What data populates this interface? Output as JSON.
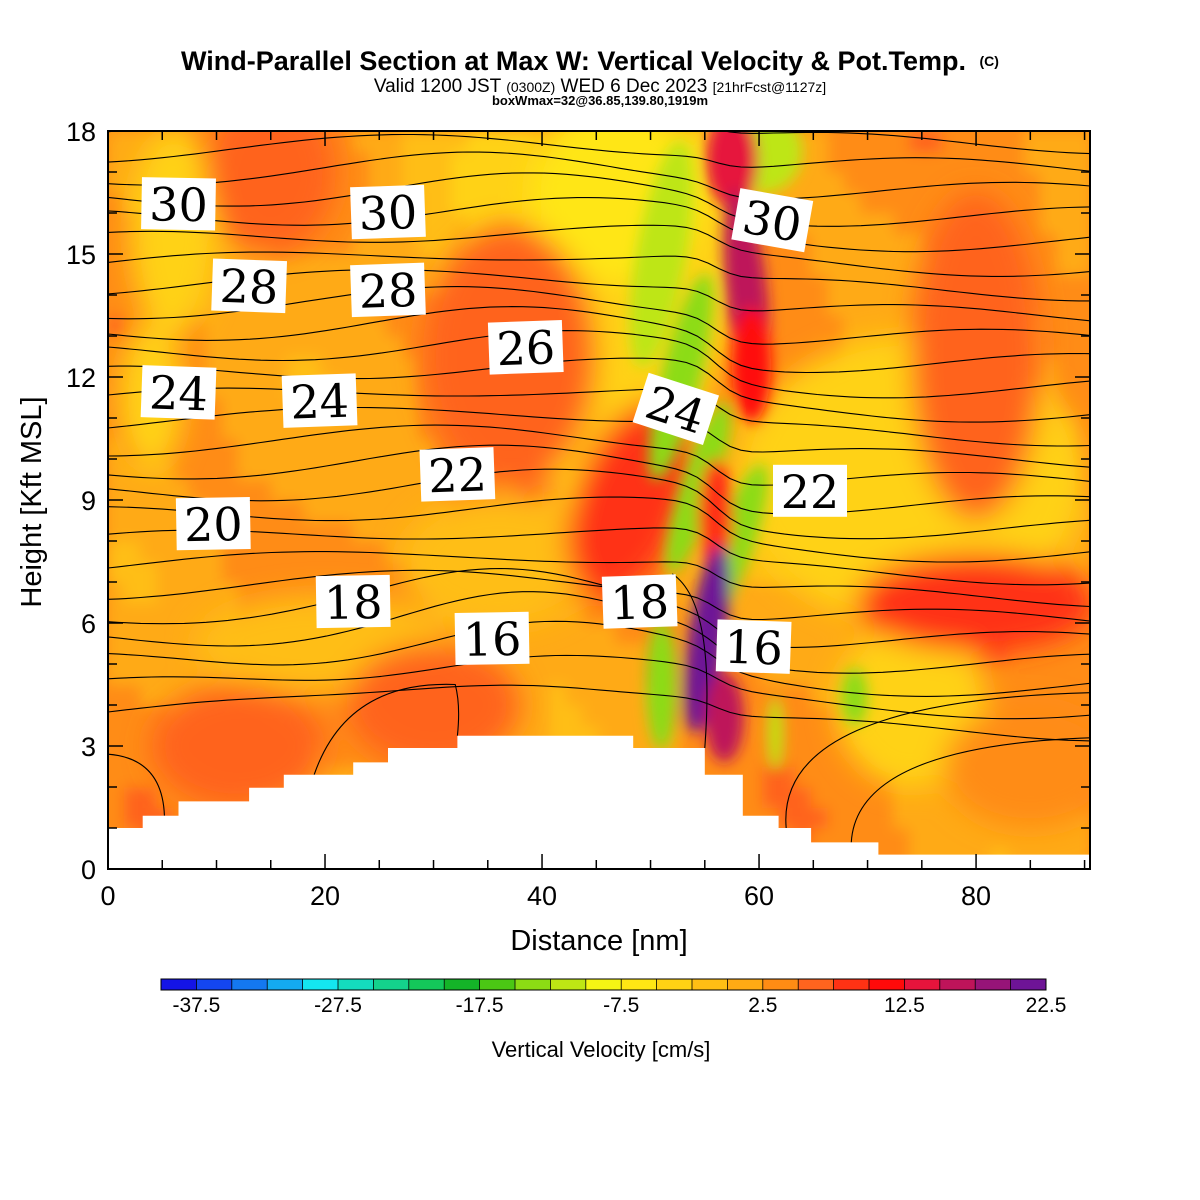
{
  "header": {
    "title": "Wind-Parallel Section at Max W: Vertical Velocity & Pot.Temp.",
    "copyright_mark": "(C)",
    "valid_a": "Valid 1200 JST ",
    "valid_zone": "(0300Z)",
    "valid_b": " WED 6 Dec 2023 ",
    "valid_fcst": "[21hrFcst@1127z]",
    "box_info": "boxWmax=32@36.85,139.80,1919m"
  },
  "chart_data": {
    "type": "heatmap",
    "title": "Wind-Parallel Section at Max W: Vertical Velocity & Pot.Temp.",
    "xlabel": "Distance [nm]",
    "ylabel": "Height [Kft MSL]",
    "xlim": [
      0,
      90.5
    ],
    "ylim": [
      0,
      18
    ],
    "x_ticks": [
      0,
      20,
      40,
      60,
      80
    ],
    "y_ticks": [
      0,
      3,
      6,
      9,
      12,
      15,
      18
    ],
    "grid": false,
    "field": "Vertical Velocity",
    "field_units": "cm/s",
    "colorbar": {
      "label": "Vertical Velocity [cm/s]",
      "placement": "bottom",
      "tick_labels": [
        "-37.5",
        "-27.5",
        "-17.5",
        "-7.5",
        "2.5",
        "12.5",
        "22.5"
      ],
      "tick_values": [
        -37.5,
        -27.5,
        -17.5,
        -7.5,
        2.5,
        12.5,
        22.5
      ],
      "bin_min": -40,
      "bin_width": 2.5,
      "colors": [
        "#1414e6",
        "#1446f0",
        "#1478f0",
        "#14aaf0",
        "#14e6f0",
        "#14dcbe",
        "#14d28c",
        "#14c85a",
        "#14b428",
        "#4bc814",
        "#8cdc14",
        "#bee614",
        "#f5f514",
        "#ffe614",
        "#ffd214",
        "#ffbe14",
        "#ffaa14",
        "#ff8c14",
        "#ff641e",
        "#ff3214",
        "#ff0a0a",
        "#e6143c",
        "#be145a",
        "#961478",
        "#6e1496"
      ]
    },
    "isentropes": {
      "quantity": "Pot.Temp.",
      "labels": [
        {
          "text": "30",
          "x": 6.5,
          "y": 16.2,
          "rot": 1
        },
        {
          "text": "30",
          "x": 25.8,
          "y": 16.0,
          "rot": -2
        },
        {
          "text": "30",
          "x": 61.2,
          "y": 15.8,
          "rot": 10
        },
        {
          "text": "28",
          "x": 13.0,
          "y": 14.2,
          "rot": 2
        },
        {
          "text": "28",
          "x": 25.8,
          "y": 14.1,
          "rot": -2
        },
        {
          "text": "26",
          "x": 38.5,
          "y": 12.7,
          "rot": -2
        },
        {
          "text": "24",
          "x": 6.5,
          "y": 11.6,
          "rot": 2
        },
        {
          "text": "24",
          "x": 19.5,
          "y": 11.4,
          "rot": -2
        },
        {
          "text": "24",
          "x": 52.3,
          "y": 11.2,
          "rot": 18
        },
        {
          "text": "22",
          "x": 32.2,
          "y": 9.6,
          "rot": -2
        },
        {
          "text": "22",
          "x": 64.7,
          "y": 9.2,
          "rot": 0
        },
        {
          "text": "20",
          "x": 9.7,
          "y": 8.4,
          "rot": -1
        },
        {
          "text": "18",
          "x": 22.6,
          "y": 6.5,
          "rot": -1
        },
        {
          "text": "18",
          "x": 49.0,
          "y": 6.5,
          "rot": -2
        },
        {
          "text": "16",
          "x": 35.4,
          "y": 5.6,
          "rot": -1
        },
        {
          "text": "16",
          "x": 59.5,
          "y": 5.4,
          "rot": 2
        }
      ]
    },
    "terrain_nm_kft": [
      [
        0,
        1.0
      ],
      [
        3.2,
        1.0
      ],
      [
        3.2,
        1.3
      ],
      [
        6.5,
        1.3
      ],
      [
        6.5,
        1.65
      ],
      [
        13,
        1.65
      ],
      [
        13,
        1.98
      ],
      [
        16.2,
        1.98
      ],
      [
        16.2,
        2.3
      ],
      [
        22.6,
        2.3
      ],
      [
        22.6,
        2.6
      ],
      [
        25.8,
        2.6
      ],
      [
        25.8,
        2.95
      ],
      [
        32.2,
        2.95
      ],
      [
        32.2,
        3.25
      ],
      [
        48.4,
        3.25
      ],
      [
        48.4,
        2.95
      ],
      [
        55.0,
        2.95
      ],
      [
        55.0,
        2.3
      ],
      [
        58.5,
        2.3
      ],
      [
        58.5,
        1.3
      ],
      [
        61.8,
        1.3
      ],
      [
        61.8,
        1.0
      ],
      [
        64.8,
        1.0
      ],
      [
        64.8,
        0.65
      ],
      [
        71.0,
        0.65
      ],
      [
        71.0,
        0.35
      ],
      [
        90.5,
        0.35
      ]
    ]
  }
}
